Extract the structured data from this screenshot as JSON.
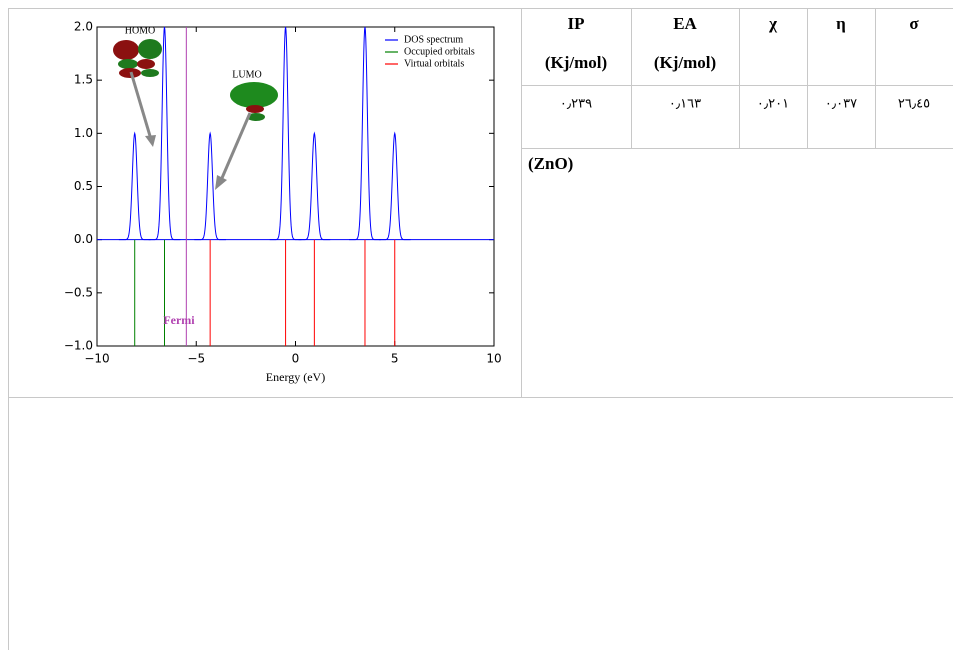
{
  "chart_data": {
    "type": "spectrum",
    "xlabel": "Energy (eV)",
    "xlim": [
      -10,
      10
    ],
    "ylim": [
      -1,
      2
    ],
    "xticks": [
      {
        "value": -10,
        "label": "−10"
      },
      {
        "value": -5,
        "label": "−5"
      },
      0,
      5,
      10
    ],
    "yticks": [
      {
        "value": -1,
        "label": "−1.0"
      },
      {
        "value": -0.5,
        "label": "−0.5"
      },
      {
        "value": 0,
        "label": "0.0"
      },
      0.5,
      {
        "value": 1,
        "label": "1.0"
      },
      1.5,
      {
        "value": 2,
        "label": "2.0"
      }
    ],
    "series": [
      {
        "name": "DOS spectrum",
        "color": "#0000ff",
        "x": [
          -8.1,
          -6.6,
          -4.3,
          -0.5,
          0.95,
          3.5,
          5.0
        ],
        "values": [
          1,
          2,
          1,
          2,
          1,
          2,
          1
        ]
      },
      {
        "name": "Occupied orbitals",
        "color": "#008000",
        "x": [
          -8.1,
          -6.6
        ]
      },
      {
        "name": "Virtual orbitals",
        "color": "#ff0000",
        "x": [
          -4.3,
          -0.5,
          0.95,
          3.5,
          5.0
        ]
      }
    ],
    "fermi": {
      "label": "Fermi",
      "x": -5.5,
      "color": "#b040b0"
    },
    "annotations": [
      "HOMO",
      "LUMO"
    ]
  },
  "table": {
    "header": [
      [
        "IP",
        "(Kj/mol)"
      ],
      [
        "EA",
        "(Kj/mol)"
      ],
      [
        "χ"
      ],
      [
        "η"
      ],
      [
        "σ"
      ]
    ],
    "rows": [
      [
        "٠٫٢٣٩",
        "٠٫١٦٣",
        "٠٫٢٠١",
        "٠٫٠٣٧",
        "٢٦٫٤٥"
      ]
    ],
    "note": "(ZnO)"
  }
}
